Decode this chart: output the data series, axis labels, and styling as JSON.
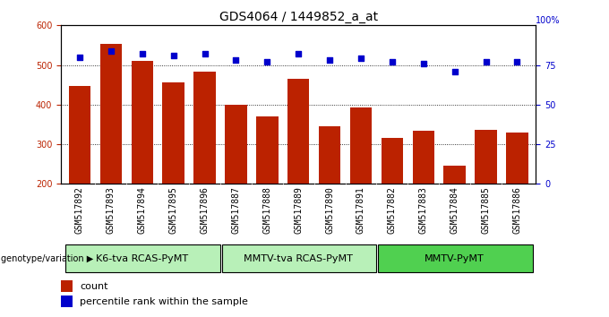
{
  "title": "GDS4064 / 1449852_a_at",
  "samples": [
    "GSM517892",
    "GSM517893",
    "GSM517894",
    "GSM517895",
    "GSM517896",
    "GSM517887",
    "GSM517888",
    "GSM517889",
    "GSM517890",
    "GSM517891",
    "GSM517882",
    "GSM517883",
    "GSM517884",
    "GSM517885",
    "GSM517886"
  ],
  "counts": [
    447,
    553,
    510,
    455,
    483,
    400,
    370,
    465,
    346,
    393,
    315,
    333,
    247,
    337,
    330
  ],
  "percentiles": [
    80,
    84,
    82,
    81,
    82,
    78,
    77,
    82,
    78,
    79,
    77,
    76,
    71,
    77,
    77
  ],
  "groups": [
    {
      "label": "K6-tva RCAS-PyMT",
      "start": 0,
      "end": 5
    },
    {
      "label": "MMTV-tva RCAS-PyMT",
      "start": 5,
      "end": 10
    },
    {
      "label": "MMTV-PyMT",
      "start": 10,
      "end": 15
    }
  ],
  "group_colors": [
    "#b8f0b8",
    "#b8f0b8",
    "#50d050"
  ],
  "bar_color": "#BB2200",
  "dot_color": "#0000CC",
  "ylim_left": [
    200,
    600
  ],
  "ylim_right": [
    0,
    100
  ],
  "yticks_left": [
    200,
    300,
    400,
    500,
    600
  ],
  "yticks_right": [
    0,
    25,
    50,
    75
  ],
  "grid_lines": [
    300,
    400,
    500
  ],
  "background_color": "#ffffff",
  "tick_area_color": "#cccccc",
  "genotype_label": "genotype/variation",
  "legend_count_label": "count",
  "legend_percentile_label": "percentile rank within the sample",
  "title_fontsize": 10,
  "tick_label_fontsize": 7,
  "group_label_fontsize": 8,
  "legend_fontsize": 8
}
